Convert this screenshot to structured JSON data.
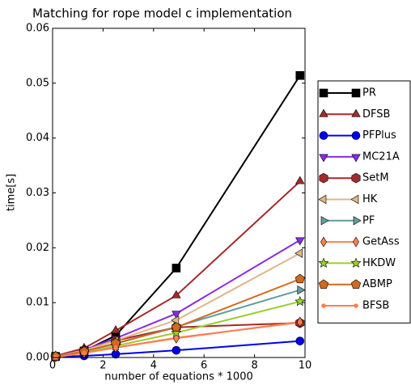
{
  "chart_data": {
    "type": "line",
    "title": "Matching for rope model c implementation",
    "x_label": "number of equations * 1000",
    "y_label": "time[s]",
    "x": [
      0.12,
      1.25,
      2.5,
      4.9,
      9.8
    ],
    "xlim": [
      0,
      10
    ],
    "xticks": [
      0,
      2,
      4,
      6,
      8,
      10
    ],
    "ylim": [
      0,
      0.06
    ],
    "yticks": [
      {
        "value": 0,
        "label": "0.00"
      },
      {
        "value": 0.01,
        "label": "0.01"
      },
      {
        "value": 0.02,
        "label": "0.02"
      },
      {
        "value": 0.03,
        "label": "0.03"
      },
      {
        "value": 0.04,
        "label": "0.04"
      },
      {
        "value": 0.05,
        "label": "0.05"
      },
      {
        "value": 0.06,
        "label": "0.06"
      }
    ],
    "legend": "right",
    "series": [
      {
        "name": "PR",
        "color": "#000000",
        "marker": "square",
        "values": [
          0.0002,
          0.0012,
          0.004,
          0.0163,
          0.0514
        ]
      },
      {
        "name": "DFSB",
        "color": "#a52a2a",
        "marker": "triangle-up",
        "values": [
          0.0003,
          0.0017,
          0.0049,
          0.0113,
          0.0321
        ]
      },
      {
        "name": "PFPlus",
        "color": "#0000ee",
        "marker": "circle",
        "values": [
          0.0001,
          0.0003,
          0.0006,
          0.0013,
          0.003
        ]
      },
      {
        "name": "MC21A",
        "color": "#8a2be2",
        "marker": "triangle-down",
        "values": [
          0.0002,
          0.0014,
          0.0035,
          0.008,
          0.0214
        ]
      },
      {
        "name": "SetM",
        "color": "#a52a2a",
        "marker": "hexagon",
        "values": [
          0.0002,
          0.0013,
          0.0031,
          0.0055,
          0.0063
        ]
      },
      {
        "name": "HK",
        "color": "#deb887",
        "marker": "triangle-left",
        "values": [
          0.0002,
          0.0013,
          0.0031,
          0.0068,
          0.019
        ]
      },
      {
        "name": "PF",
        "color": "#5f9ea0",
        "marker": "triangle-right",
        "values": [
          0.0002,
          0.0011,
          0.0025,
          0.0056,
          0.0123
        ]
      },
      {
        "name": "GetAss",
        "color": "#ff7f50",
        "marker": "diamond",
        "values": [
          0.0001,
          0.0008,
          0.0018,
          0.0035,
          0.0065
        ]
      },
      {
        "name": "HKDW",
        "color": "#9acd32",
        "marker": "star",
        "values": [
          0.0001,
          0.0009,
          0.0021,
          0.0045,
          0.0102
        ]
      },
      {
        "name": "ABMP",
        "color": "#d2691e",
        "marker": "pentagon",
        "values": [
          0.0002,
          0.0011,
          0.0026,
          0.0055,
          0.0143
        ]
      },
      {
        "name": "BFSB",
        "color": "#ff7f50",
        "marker": "point",
        "values": [
          0.0001,
          0.0008,
          0.0018,
          0.0036,
          0.0064
        ]
      }
    ]
  }
}
